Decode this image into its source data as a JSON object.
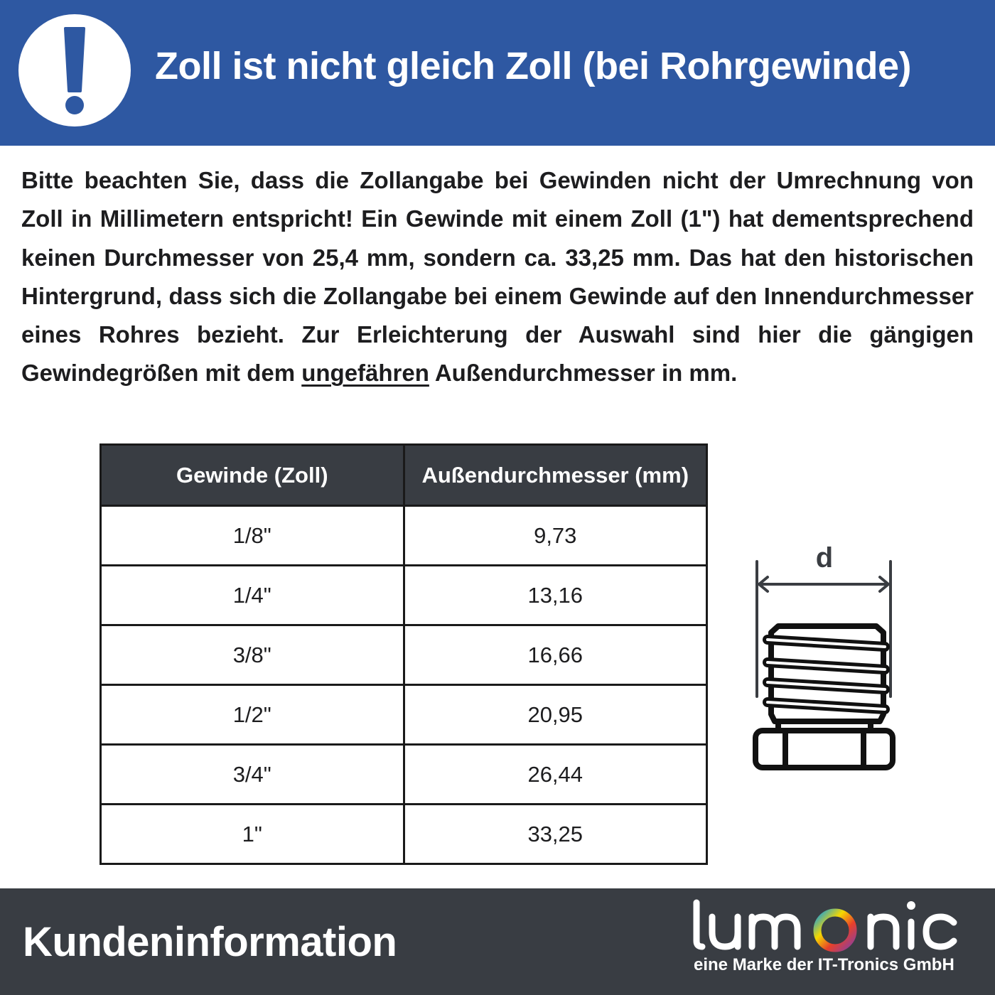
{
  "header": {
    "title": "Zoll ist nicht gleich Zoll (bei Rohrgewinde)",
    "icon": "exclamation-icon",
    "color": "#2e58a2"
  },
  "intro": {
    "text_before": "Bitte beachten Sie, dass die Zollangabe bei Gewinden nicht der Umrechnung von Zoll in Millimetern entspricht! Ein Gewinde mit einem Zoll (1\") hat dementsprechend keinen Durchmesser von 25,4 mm, sondern ca. 33,25 mm. Das hat den historischen Hintergrund, dass sich die Zollangabe bei einem Gewinde auf den Innendurchmesser eines Rohres bezieht. Zur Erleichterung der Auswahl sind hier die gängigen Gewindegrößen mit dem ",
    "underlined": "ungefähren",
    "text_after": " Außendurchmesser in mm."
  },
  "table": {
    "headers": [
      "Gewinde (Zoll)",
      "Außendurchmesser (mm)"
    ],
    "rows": [
      [
        "1/8\"",
        "9,73"
      ],
      [
        "1/4\"",
        "13,16"
      ],
      [
        "3/8\"",
        "16,66"
      ],
      [
        "1/2\"",
        "20,95"
      ],
      [
        "3/4\"",
        "26,44"
      ],
      [
        "1\"",
        "33,25"
      ]
    ]
  },
  "diagram": {
    "label": "d"
  },
  "footer": {
    "label": "Kundeninformation",
    "logo_text": "lumonic",
    "tagline": "eine Marke der IT-Tronics GmbH",
    "color": "#393d43"
  }
}
